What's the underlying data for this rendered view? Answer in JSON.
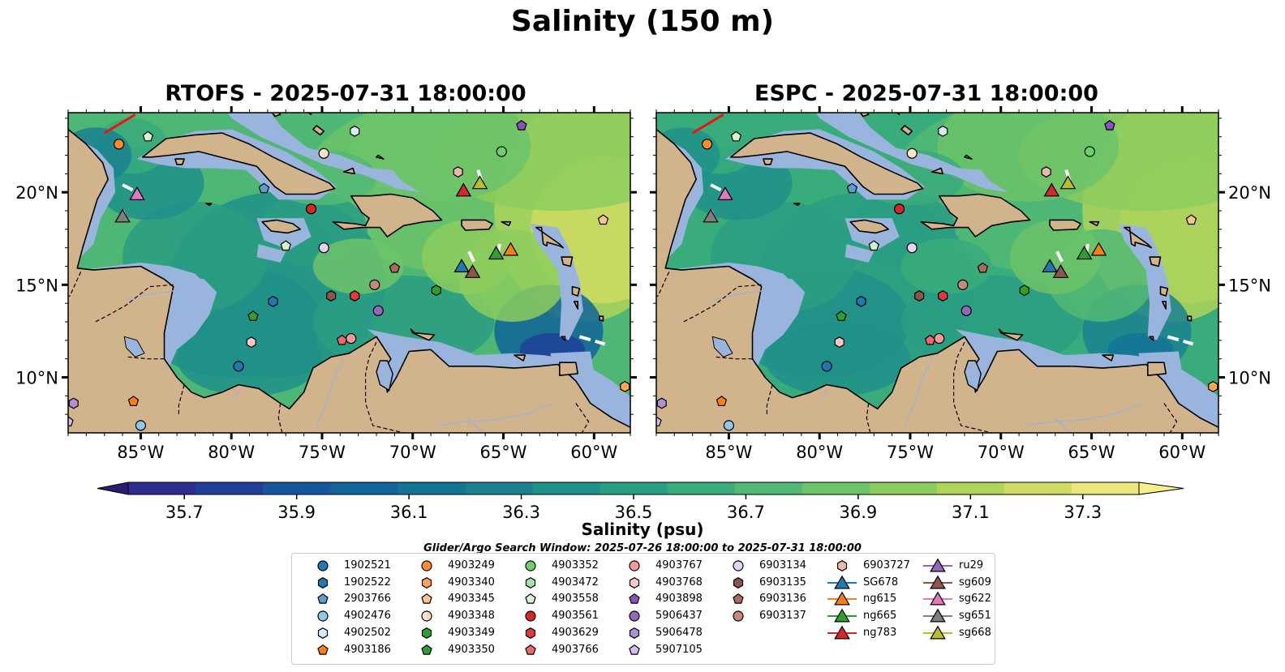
{
  "figure": {
    "title": "Salinity (150 m)",
    "search_window": "Glider/Argo Search Window: 2025-07-26 18:00:00 to 2025-07-31 18:00:00"
  },
  "panels": [
    {
      "title": "RTOFS - 2025-07-31 18:00:00",
      "model": "RTOFS"
    },
    {
      "title": "ESPC - 2025-07-31 18:00:00",
      "model": "ESPC"
    }
  ],
  "axes": {
    "lon_labels": [
      "85°W",
      "80°W",
      "75°W",
      "70°W",
      "65°W",
      "60°W"
    ],
    "lat_labels": [
      "20°N",
      "15°N",
      "10°N"
    ]
  },
  "colorbar": {
    "label": "Salinity (psu)",
    "ticks": [
      "35.7",
      "35.9",
      "36.1",
      "36.3",
      "36.5",
      "36.7",
      "36.9",
      "37.1",
      "37.3"
    ],
    "range": [
      35.6,
      37.4
    ],
    "extend": "both",
    "colors": [
      "#2b1d6e",
      "#2d2c8f",
      "#213f99",
      "#17559c",
      "#126499",
      "#147494",
      "#1a818f",
      "#20908a",
      "#2a9e83",
      "#3aab7b",
      "#52b874",
      "#6cc36a",
      "#8ccc5e",
      "#aed45a",
      "#cfdb62",
      "#ece77c",
      "#f7ef8b"
    ],
    "cmap": "haline"
  },
  "map_colors": {
    "land": "#d2b48c",
    "shelf": "#9ab5dd",
    "sea": "#3fa07f",
    "sea_high": "#7cc464",
    "deep_low": "#2a1a66",
    "track": "#ffffff",
    "boundary": "#ee1111"
  },
  "legend": {
    "entries": [
      {
        "name": "1902521",
        "marker": "circle",
        "color": "#1f77b4"
      },
      {
        "name": "1902522",
        "marker": "hexagon",
        "color": "#1f77b4"
      },
      {
        "name": "2903766",
        "marker": "pentagon",
        "color": "#5a9fd4"
      },
      {
        "name": "4902476",
        "marker": "circle",
        "color": "#8fc8e8"
      },
      {
        "name": "4902502",
        "marker": "hexagon",
        "color": "#d4ecf7"
      },
      {
        "name": "4903186",
        "marker": "pentagon",
        "color": "#ff7f0e"
      },
      {
        "name": "4903249",
        "marker": "circle",
        "color": "#ff8c2a"
      },
      {
        "name": "4903340",
        "marker": "hexagon",
        "color": "#ffa64d"
      },
      {
        "name": "4903345",
        "marker": "pentagon",
        "color": "#ffc48a"
      },
      {
        "name": "4903348",
        "marker": "circle",
        "color": "#ffe3c4"
      },
      {
        "name": "4903349",
        "marker": "hexagon",
        "color": "#2ca02c"
      },
      {
        "name": "4903350",
        "marker": "pentagon",
        "color": "#2ca02c"
      },
      {
        "name": "4903352",
        "marker": "circle",
        "color": "#6fcf6f"
      },
      {
        "name": "4903472",
        "marker": "hexagon",
        "color": "#a4e3a4"
      },
      {
        "name": "4903558",
        "marker": "pentagon",
        "color": "#d4f2d0"
      },
      {
        "name": "4903561",
        "marker": "circle",
        "color": "#d62728"
      },
      {
        "name": "4903629",
        "marker": "hexagon",
        "color": "#e4393a"
      },
      {
        "name": "4903766",
        "marker": "pentagon",
        "color": "#f2686a"
      },
      {
        "name": "4903767",
        "marker": "circle",
        "color": "#f89a9a"
      },
      {
        "name": "4903768",
        "marker": "hexagon",
        "color": "#fcc9c9"
      },
      {
        "name": "4903898",
        "marker": "pentagon",
        "color": "#8b4fc4"
      },
      {
        "name": "5906437",
        "marker": "circle",
        "color": "#9467bd"
      },
      {
        "name": "5906478",
        "marker": "hexagon",
        "color": "#b08fd6"
      },
      {
        "name": "5907105",
        "marker": "pentagon",
        "color": "#d6bdf0"
      },
      {
        "name": "6903134",
        "marker": "circle",
        "color": "#e8d3f7"
      },
      {
        "name": "6903135",
        "marker": "hexagon",
        "color": "#8c564b"
      },
      {
        "name": "6903136",
        "marker": "pentagon",
        "color": "#a86b5e"
      },
      {
        "name": "6903137",
        "marker": "circle",
        "color": "#c48a7a"
      },
      {
        "name": "6903727",
        "marker": "hexagon",
        "color": "#e8b8ad"
      },
      {
        "name": "SG678",
        "marker": "triangle",
        "color": "#1f77b4"
      },
      {
        "name": "ng615",
        "marker": "triangle",
        "color": "#ff7f0e"
      },
      {
        "name": "ng665",
        "marker": "triangle",
        "color": "#2ca02c"
      },
      {
        "name": "ng783",
        "marker": "triangle",
        "color": "#d62728"
      },
      {
        "name": "ru29",
        "marker": "triangle",
        "color": "#9467bd"
      },
      {
        "name": "sg609",
        "marker": "triangle",
        "color": "#8c564b"
      },
      {
        "name": "sg622",
        "marker": "triangle",
        "color": "#e377c2"
      },
      {
        "name": "sg651",
        "marker": "triangle",
        "color": "#7f7f7f"
      },
      {
        "name": "sg668",
        "marker": "triangle",
        "color": "#bcbd22"
      }
    ]
  },
  "platforms": [
    {
      "id": "4903249",
      "lon": -86.2,
      "lat": 22.6
    },
    {
      "id": "4903558",
      "lon": -84.6,
      "lat": 23.0
    },
    {
      "id": "4902502",
      "lon": -73.2,
      "lat": 23.3
    },
    {
      "id": "4903898",
      "lon": -64.0,
      "lat": 23.6
    },
    {
      "id": "4903348",
      "lon": -74.9,
      "lat": 22.1
    },
    {
      "id": "4903352",
      "lon": -65.1,
      "lat": 22.2
    },
    {
      "id": "6903727",
      "lon": -67.5,
      "lat": 21.1
    },
    {
      "id": "2903766",
      "lon": -78.2,
      "lat": 20.2
    },
    {
      "id": "4903561",
      "lon": -75.6,
      "lat": 19.1
    },
    {
      "id": "4903345",
      "lon": -59.5,
      "lat": 18.5
    },
    {
      "id": "4903558",
      "lon": -77.0,
      "lat": 17.1
    },
    {
      "id": "6903134",
      "lon": -74.9,
      "lat": 17.0
    },
    {
      "id": "6903136",
      "lon": -71.0,
      "lat": 15.9
    },
    {
      "id": "6903135",
      "lon": -74.5,
      "lat": 14.4
    },
    {
      "id": "4903629",
      "lon": -73.2,
      "lat": 14.4
    },
    {
      "id": "6903137",
      "lon": -72.1,
      "lat": 15.0
    },
    {
      "id": "4903349",
      "lon": -68.7,
      "lat": 14.7
    },
    {
      "id": "1902522",
      "lon": -77.7,
      "lat": 14.1
    },
    {
      "id": "5906437",
      "lon": -71.9,
      "lat": 13.6
    },
    {
      "id": "4903350",
      "lon": -78.8,
      "lat": 13.3
    },
    {
      "id": "4903766",
      "lon": -73.9,
      "lat": 12.0
    },
    {
      "id": "4903767",
      "lon": -73.4,
      "lat": 12.1
    },
    {
      "id": "4903768",
      "lon": -78.9,
      "lat": 11.9
    },
    {
      "id": "1902521",
      "lon": -79.6,
      "lat": 10.6
    },
    {
      "id": "4903340",
      "lon": -58.3,
      "lat": 9.5
    },
    {
      "id": "4903186",
      "lon": -85.4,
      "lat": 8.7
    },
    {
      "id": "5906478",
      "lon": -88.7,
      "lat": 8.6
    },
    {
      "id": "5907105",
      "lon": -89.0,
      "lat": 7.6
    },
    {
      "id": "4902476",
      "lon": -85.0,
      "lat": 7.4
    },
    {
      "id": "sg622",
      "lon": -85.2,
      "lat": 19.9
    },
    {
      "id": "sg651",
      "lon": -86.0,
      "lat": 18.7
    },
    {
      "id": "ng783",
      "lon": -67.2,
      "lat": 20.1
    },
    {
      "id": "sg668",
      "lon": -66.3,
      "lat": 20.5
    },
    {
      "id": "ng665",
      "lon": -65.4,
      "lat": 16.7
    },
    {
      "id": "ng615",
      "lon": -64.6,
      "lat": 16.9
    },
    {
      "id": "SG678",
      "lon": -67.3,
      "lat": 16.0
    },
    {
      "id": "sg609",
      "lon": -66.7,
      "lat": 15.7
    }
  ],
  "glider_tracks": [
    [
      [
        -86.0,
        20.4
      ],
      [
        -85.4,
        20.1
      ]
    ],
    [
      [
        -86.0,
        19.0
      ],
      [
        -85.8,
        18.6
      ]
    ],
    [
      [
        -66.4,
        21.2
      ],
      [
        -66.2,
        20.6
      ]
    ],
    [
      [
        -66.9,
        16.8
      ],
      [
        -66.6,
        16.2
      ]
    ],
    [
      [
        -65.2,
        17.2
      ],
      [
        -65.3,
        16.6
      ]
    ],
    [
      [
        -60.8,
        12.2
      ],
      [
        -59.4,
        11.8
      ]
    ]
  ],
  "boundary_line": [
    [
      -87.0,
      23.2
    ],
    [
      -85.3,
      24.2
    ]
  ]
}
